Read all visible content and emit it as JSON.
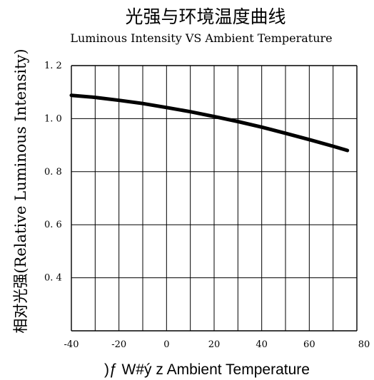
{
  "chart_data": {
    "type": "line",
    "title": "光强与环境温度曲线",
    "subtitle": "Luminous Intensity VS Ambient Temperature",
    "xlabel": ")ƒ W#ý z   Ambient Temperature",
    "ylabel": "相对光强(Relative Luminous Intensity)",
    "xlim": [
      -40,
      80
    ],
    "ylim": [
      0.2,
      1.2
    ],
    "x_ticks": [
      -40,
      -20,
      0,
      20,
      40,
      60,
      80
    ],
    "x_tick_labels": [
      "-40",
      "-20",
      "0",
      "20",
      "40",
      "60",
      "80"
    ],
    "y_ticks": [
      0.4,
      0.6,
      0.8,
      1.0,
      1.2
    ],
    "y_tick_labels": [
      "0. 4",
      "0. 6",
      "0. 8",
      "1. 0",
      "1. 2"
    ],
    "grid": true,
    "series": [
      {
        "x": [
          -40,
          -30,
          -20,
          -10,
          0,
          10,
          20,
          30,
          40,
          50,
          60,
          70,
          76
        ],
        "y": [
          1.088,
          1.08,
          1.069,
          1.057,
          1.042,
          1.026,
          1.008,
          0.989,
          0.968,
          0.945,
          0.921,
          0.896,
          0.88
        ]
      }
    ],
    "line_color": "#000000"
  }
}
